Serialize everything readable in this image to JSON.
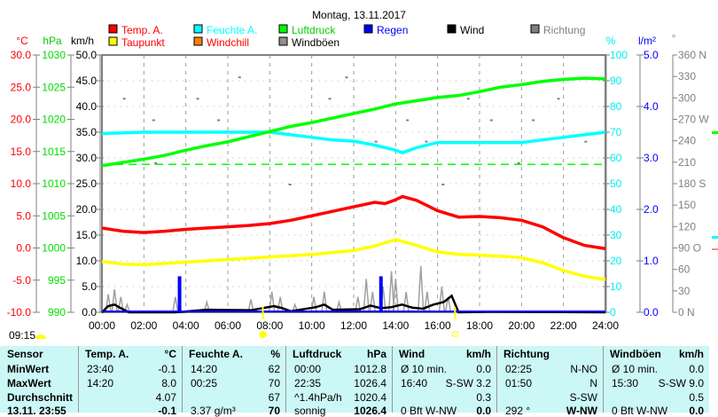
{
  "title": "Montag, 13.11.2017",
  "colors": {
    "temp": "#ff0000",
    "dew": "#ffff00",
    "humidity": "#00ffff",
    "windchill": "#ff8000",
    "pressure": "#00ff00",
    "gusts": "#a0a0a0",
    "rain": "#0000ff",
    "wind": "#000000",
    "direction": "#808080"
  },
  "legend": [
    {
      "label": "Temp. A.",
      "color": "#ff0000",
      "text_color": "#ff0000"
    },
    {
      "label": "Feuchte A.",
      "color": "#00ffff",
      "text_color": "#00ffff"
    },
    {
      "label": "Luftdruck",
      "color": "#00ff00",
      "text_color": "#00cc00"
    },
    {
      "label": "Regen",
      "color": "#0000ff",
      "text_color": "#0000ff"
    },
    {
      "label": "Wind",
      "color": "#000000",
      "text_color": "#000000"
    },
    {
      "label": "Richtung",
      "color": "#808080",
      "text_color": "#808080"
    },
    {
      "label": "Taupunkt",
      "color": "#ffff00",
      "text_color": "#ff0000"
    },
    {
      "label": "Windchill",
      "color": "#ff8000",
      "text_color": "#ff0000"
    },
    {
      "label": "Windböen",
      "color": "#909090",
      "text_color": "#000000"
    }
  ],
  "chart_data": {
    "type": "line",
    "title": "Montag, 13.11.2017",
    "xlabel": "",
    "x_ticks": [
      "00:00",
      "02:00",
      "04:00",
      "06:00",
      "08:00",
      "10:00",
      "12:00",
      "14:00",
      "16:00",
      "18:00",
      "20:00",
      "22:00",
      "24:00"
    ],
    "xlim": [
      0,
      24
    ],
    "axes": {
      "temp": {
        "unit": "°C",
        "range": [
          -10,
          30
        ],
        "ticks": [
          "30.0",
          "25.0",
          "20.0",
          "15.0",
          "10.0",
          "5.0",
          "0.0",
          "-5.0",
          "-10.0"
        ]
      },
      "pressure": {
        "unit": "hPa",
        "range": [
          990,
          1030
        ],
        "ticks": [
          "1030",
          "1025",
          "1020",
          "1015",
          "1010",
          "1005",
          "1000",
          "995",
          "990"
        ]
      },
      "wind": {
        "unit": "km/h",
        "range": [
          0,
          50
        ],
        "ticks": [
          "50.0",
          "45.0",
          "40.0",
          "35.0",
          "30.0",
          "25.0",
          "20.0",
          "15.0",
          "10.0",
          "5.0",
          "0.0"
        ]
      },
      "humidity": {
        "unit": "%",
        "range": [
          0,
          100
        ],
        "ticks": [
          "100",
          "90",
          "80",
          "70",
          "60",
          "50",
          "40",
          "30",
          "20",
          "10",
          "0"
        ]
      },
      "rain": {
        "unit": "l/m²",
        "range": [
          0,
          5
        ],
        "ticks": [
          "5.0",
          "4.0",
          "3.0",
          "2.0",
          "1.0",
          "0.0"
        ]
      },
      "direction": {
        "unit": "°",
        "range": [
          0,
          360
        ],
        "ticks": [
          "360 N",
          "330",
          "300",
          "270 W",
          "240",
          "210",
          "180 S",
          "150",
          "120",
          "90  O",
          "60",
          "30",
          "0   N"
        ]
      }
    },
    "series": [
      {
        "name": "Temp. A.",
        "axis": "temp",
        "x": [
          0,
          1,
          2,
          3,
          4,
          5,
          6,
          7,
          8,
          9,
          10,
          11,
          12,
          13,
          13.5,
          14,
          14.33,
          15,
          16,
          17,
          18,
          19,
          20,
          21,
          22,
          23,
          24
        ],
        "y": [
          3.1,
          2.6,
          2.4,
          2.6,
          2.9,
          3.1,
          3.3,
          3.5,
          3.8,
          4.3,
          5.0,
          5.7,
          6.4,
          7.1,
          6.9,
          7.5,
          8.0,
          7.4,
          5.8,
          4.8,
          4.9,
          4.7,
          4.3,
          3.3,
          1.6,
          0.4,
          -0.1
        ]
      },
      {
        "name": "Taupunkt",
        "axis": "temp",
        "x": [
          0,
          1,
          2,
          3,
          4,
          5,
          6,
          7,
          8,
          9,
          10,
          11,
          12,
          13,
          14,
          15,
          16,
          17,
          18,
          19,
          20,
          21,
          22,
          23,
          24
        ],
        "y": [
          -2.1,
          -2.5,
          -2.6,
          -2.4,
          -2.2,
          -2.0,
          -1.8,
          -1.6,
          -1.4,
          -1.2,
          -1.0,
          -0.7,
          -0.4,
          0.3,
          1.3,
          0.4,
          -0.6,
          -1.0,
          -1.1,
          -1.3,
          -1.5,
          -2.3,
          -3.5,
          -4.4,
          -4.9
        ]
      },
      {
        "name": "Feuchte A.",
        "axis": "humidity",
        "x": [
          0,
          2,
          4,
          6,
          8,
          9,
          10,
          11,
          12,
          13,
          14,
          14.33,
          15,
          16,
          17,
          18,
          19,
          20,
          21,
          22,
          23,
          24
        ],
        "y": [
          69.5,
          70,
          70,
          70,
          70,
          69,
          68,
          67,
          66.5,
          65,
          63,
          62,
          64,
          66,
          66,
          66,
          66,
          66,
          67,
          68,
          69,
          70
        ]
      },
      {
        "name": "Luftdruck",
        "axis": "pressure",
        "x": [
          0,
          1,
          2,
          3,
          4,
          5,
          6,
          7,
          8,
          9,
          10,
          11,
          12,
          13,
          14,
          15,
          16,
          17,
          18,
          19,
          20,
          21,
          22,
          23,
          24
        ],
        "y": [
          1012.8,
          1013.3,
          1013.8,
          1014.4,
          1015.2,
          1015.9,
          1016.5,
          1017.3,
          1018.1,
          1018.9,
          1019.5,
          1020.2,
          1020.9,
          1021.6,
          1022.4,
          1022.9,
          1023.4,
          1023.7,
          1024.3,
          1025.0,
          1025.4,
          1025.9,
          1026.2,
          1026.4,
          1026.3
        ]
      },
      {
        "name": "Windböen",
        "axis": "wind",
        "x": [
          0.3,
          0.6,
          0.9,
          1.2,
          3.5,
          5,
          7.1,
          8.1,
          8.5,
          9.2,
          10.1,
          10.6,
          11.3,
          12.2,
          12.6,
          12.9,
          13.4,
          13.8,
          14,
          14.5,
          15.2,
          15.5,
          16.2,
          16.5
        ],
        "y": [
          3.5,
          4.5,
          3,
          1.5,
          3,
          2,
          2.5,
          4,
          3,
          1.5,
          3,
          4,
          2,
          3,
          6.5,
          4,
          5,
          8,
          6.5,
          4,
          9,
          4,
          5,
          3
        ]
      },
      {
        "name": "Wind",
        "axis": "wind",
        "x": [
          0,
          0.3,
          0.6,
          0.9,
          1.3,
          2,
          3.5,
          5,
          7.1,
          8.2,
          8.6,
          9,
          10.2,
          10.6,
          11,
          12.3,
          12.8,
          13.3,
          13.8,
          14.3,
          14.8,
          15.3,
          15.8,
          16.3,
          16.67,
          17,
          18.5,
          24
        ],
        "y": [
          0,
          1.2,
          1.5,
          0.8,
          0,
          0,
          0,
          0.5,
          0.4,
          1.2,
          0.8,
          0.2,
          1.0,
          1.5,
          0.5,
          0.6,
          1.3,
          0.8,
          1.0,
          1.5,
          0.9,
          0.7,
          1.5,
          2,
          3.2,
          0,
          0.1,
          0
        ]
      },
      {
        "name": "Regen",
        "axis": "rain",
        "type": "bar",
        "x": [
          3.7,
          13.3
        ],
        "y": [
          0.7,
          0.7
        ]
      }
    ],
    "reference_line": {
      "axis": "pressure",
      "value": 1013.0,
      "style": "dashed"
    },
    "direction_samples": {
      "x": [
        1,
        2.4,
        2.5,
        4.5,
        5.5,
        6.5,
        8.9,
        10.8,
        11.6,
        12.3,
        13,
        14.5,
        15.4,
        16.2,
        17.4,
        18.5,
        19.8,
        20.5,
        21.7,
        23
      ],
      "y": [
        300,
        270,
        210,
        300,
        270,
        330,
        180,
        300,
        330,
        150,
        240,
        270,
        240,
        180,
        300,
        270,
        210,
        270,
        300,
        240
      ]
    },
    "sunrise": "07:40",
    "sunset": "16:50",
    "moon": "09:15"
  },
  "table": {
    "headers": [
      [
        "Sensor",
        ""
      ],
      [
        "Temp. A.",
        "°C"
      ],
      [
        "Feuchte A.",
        "%"
      ],
      [
        "Luftdruck",
        "hPa"
      ],
      [
        "Wind",
        "km/h"
      ],
      [
        "Richtung",
        ""
      ],
      [
        "Windböen",
        "km/h"
      ]
    ],
    "rows": [
      {
        "label": "MinWert",
        "cells": [
          [
            "23:40",
            "-0.1"
          ],
          [
            "14:20",
            "62"
          ],
          [
            "00:00",
            "1012.8"
          ],
          [
            "Ø 10 min.",
            "0.0"
          ],
          [
            "02:25",
            "N-NO"
          ],
          [
            "Ø 10 min.",
            "0.0"
          ]
        ]
      },
      {
        "label": "MaxWert",
        "cells": [
          [
            "14:20",
            "8.0"
          ],
          [
            "00:25",
            "70"
          ],
          [
            "22:35",
            "1026.4"
          ],
          [
            "16:40",
            "S-SW 3.2"
          ],
          [
            "01:50",
            "N"
          ],
          [
            "15:30",
            "S-SW 9.0"
          ]
        ]
      },
      {
        "label": "Durchschnitt",
        "cells": [
          [
            "",
            "4.07"
          ],
          [
            "",
            "67"
          ],
          [
            "^1.4hPa/h",
            "1020.4"
          ],
          [
            "",
            "0.3"
          ],
          [
            "",
            "S-SW"
          ],
          [
            "",
            "0.5"
          ]
        ]
      },
      {
        "label": "13.11. 23:55",
        "cells": [
          [
            "",
            "-0.1"
          ],
          [
            "3.37 g/m³",
            "70"
          ],
          [
            "sonnig",
            "1026.4"
          ],
          [
            "0 Bft W-NW",
            "0.0"
          ],
          [
            "292 °",
            "W-NW"
          ],
          [
            "0 Bft W-NW",
            "0.0"
          ]
        ]
      }
    ]
  }
}
